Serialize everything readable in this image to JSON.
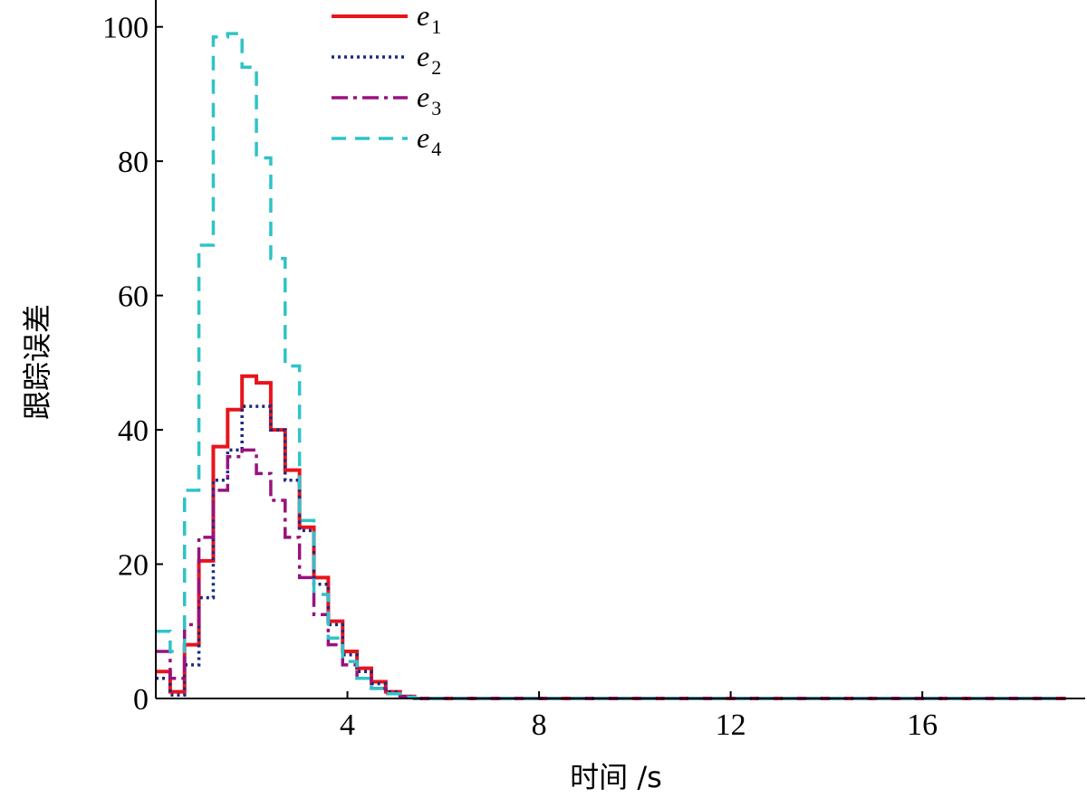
{
  "chart_data": {
    "type": "line",
    "step": true,
    "title": "",
    "xlabel": "时间 /s",
    "ylabel": "跟踪误差",
    "xlim": [
      0,
      19.4
    ],
    "ylim": [
      0,
      104
    ],
    "xticks": [
      4,
      8,
      12,
      16
    ],
    "yticks": [
      0,
      20,
      40,
      60,
      80,
      100
    ],
    "grid": false,
    "legend_position": "top-left",
    "series": [
      {
        "name": "e",
        "subscript": "1",
        "color": "#e8141c",
        "dash": "solid",
        "x": [
          0,
          0.3,
          0.6,
          0.9,
          1.2,
          1.5,
          1.8,
          2.1,
          2.4,
          2.7,
          3.0,
          3.3,
          3.6,
          3.9,
          4.2,
          4.5,
          4.8,
          5.1,
          5.4,
          19
        ],
        "y": [
          4,
          1,
          8,
          20.5,
          37.5,
          43,
          48,
          47,
          40,
          34,
          25.5,
          18,
          11.5,
          7,
          4.5,
          2.5,
          1,
          0.3,
          0,
          0
        ]
      },
      {
        "name": "e",
        "subscript": "2",
        "color": "#1a2a80",
        "dash": "dot",
        "x": [
          0,
          0.3,
          0.6,
          0.9,
          1.2,
          1.5,
          1.8,
          2.1,
          2.4,
          2.7,
          3.0,
          3.3,
          3.6,
          3.9,
          4.2,
          4.5,
          4.8,
          5.1,
          5.4,
          19
        ],
        "y": [
          3,
          0.5,
          5,
          15,
          32.5,
          37,
          43.5,
          43.5,
          40,
          32.5,
          25,
          17,
          11,
          6.5,
          4,
          2.2,
          1,
          0.3,
          0,
          0
        ]
      },
      {
        "name": "e",
        "subscript": "3",
        "color": "#98127e",
        "dash": "dashdot",
        "x": [
          0,
          0.3,
          0.6,
          0.9,
          1.2,
          1.5,
          1.8,
          2.1,
          2.4,
          2.7,
          3.0,
          3.3,
          3.6,
          3.9,
          4.2,
          4.5,
          4.8,
          5.1,
          5.4,
          19
        ],
        "y": [
          7,
          3,
          11,
          24,
          31,
          36,
          37,
          33.5,
          29.5,
          24,
          18,
          12.5,
          8,
          5,
          3,
          1.5,
          0.7,
          0.2,
          0,
          0
        ]
      },
      {
        "name": "e",
        "subscript": "4",
        "color": "#2fc3c8",
        "dash": "dash",
        "x": [
          0,
          0.3,
          0.6,
          0.9,
          1.2,
          1.5,
          1.8,
          2.1,
          2.4,
          2.7,
          3.0,
          3.3,
          3.6,
          3.9,
          4.2,
          4.5,
          4.8,
          5.1,
          5.4,
          19
        ],
        "y": [
          10,
          7,
          31,
          67.5,
          98.5,
          99,
          94,
          80.5,
          65.5,
          49.5,
          26.5,
          15.5,
          9,
          5.5,
          3,
          1.5,
          0.7,
          0.2,
          0,
          0
        ]
      }
    ]
  }
}
